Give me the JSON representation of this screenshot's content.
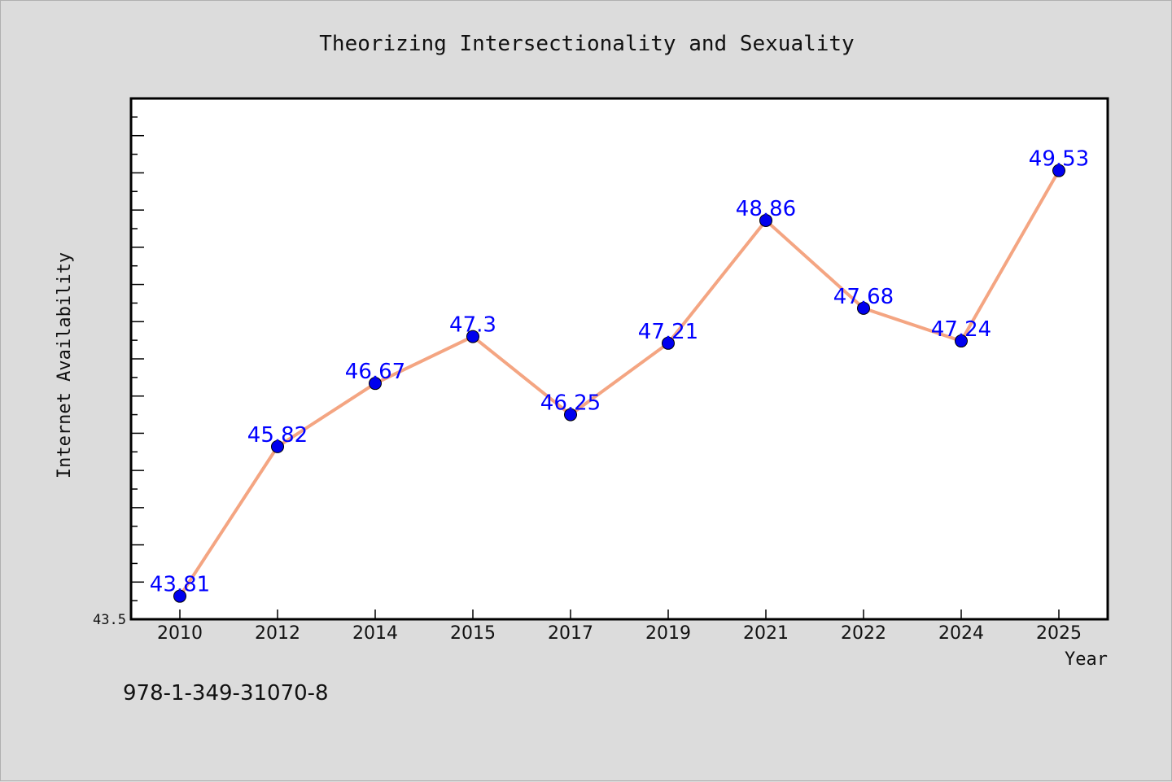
{
  "isbn": "978-1-349-31070-8",
  "chart_data": {
    "type": "line",
    "title": "Theorizing Intersectionality and Sexuality",
    "xlabel": "Year",
    "ylabel": "Internet Availability",
    "categories": [
      "2010",
      "2012",
      "2014",
      "2015",
      "2017",
      "2019",
      "2021",
      "2022",
      "2024",
      "2025"
    ],
    "series": [
      {
        "values": [
          43.81,
          45.82,
          46.67,
          47.3,
          46.25,
          47.21,
          48.86,
          47.68,
          47.24,
          49.53
        ],
        "labels": [
          "43.81",
          "45.82",
          "46.67",
          "47.3",
          "46.25",
          "47.21",
          "48.86",
          "47.68",
          "47.24",
          "49.53"
        ]
      }
    ],
    "ylim": [
      43.5,
      50.5
    ],
    "y_tick_labels": [
      "43.5"
    ],
    "grid": false,
    "colors": {
      "line": "#f4a582",
      "marker": "#0000ee",
      "label": "#0000ff"
    }
  }
}
